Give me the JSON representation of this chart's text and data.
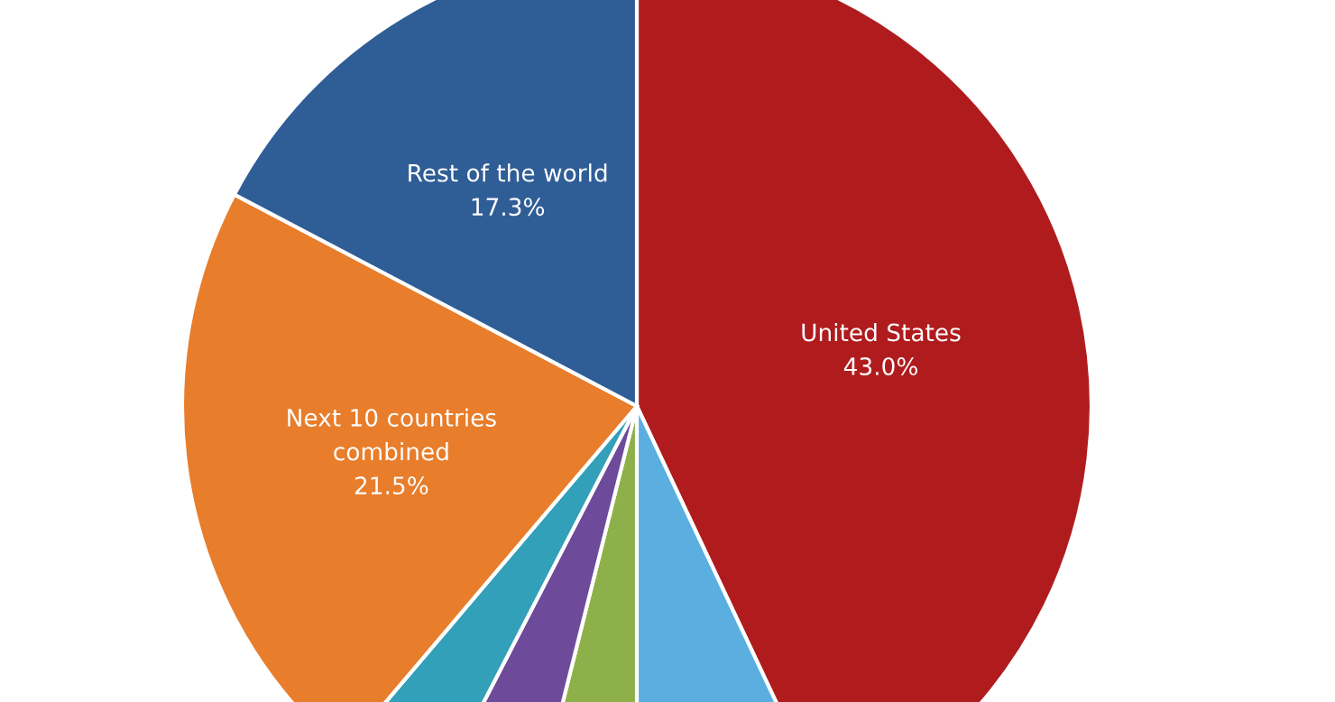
{
  "chart_data": {
    "type": "pie",
    "categories": [
      "United States",
      null,
      null,
      null,
      null,
      "Next 10 countries\ncombined",
      "Rest of the world"
    ],
    "values": [
      43.0,
      7.0,
      3.9,
      3.7,
      3.6,
      21.5,
      17.3
    ],
    "value_labels": [
      "43.0%",
      null,
      null,
      null,
      null,
      "21.5%",
      "17.3%"
    ],
    "colors": [
      "#b01c1e",
      "#5aaee0",
      "#8db04a",
      "#6e4a9a",
      "#32a0b8",
      "#e87d2b",
      "#2f5d96"
    ]
  }
}
